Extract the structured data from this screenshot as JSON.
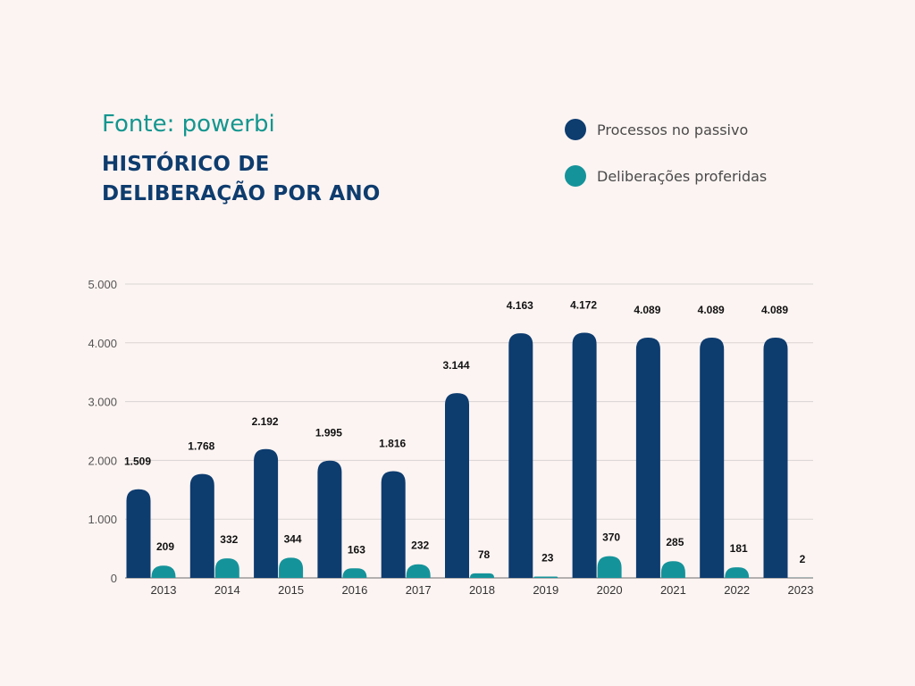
{
  "header": {
    "source": "Fonte: powerbi",
    "title_line1": "HISTÓRICO DE",
    "title_line2": "DELIBERAÇÃO POR ANO"
  },
  "legend": [
    {
      "label": "Processos no passivo",
      "color": "#0d3c6f"
    },
    {
      "label": "Deliberações proferidas",
      "color": "#15939a"
    }
  ],
  "chart_data": {
    "type": "bar",
    "categories": [
      "2013",
      "2014",
      "2015",
      "2016",
      "2017",
      "2018",
      "2019",
      "2020",
      "2021",
      "2022",
      "2023"
    ],
    "series": [
      {
        "name": "Processos no passivo",
        "color": "#0d3c6f",
        "values": [
          1509,
          1768,
          2192,
          1995,
          1816,
          3144,
          4163,
          4172,
          4089,
          4089,
          4089
        ],
        "labels": [
          "1.509",
          "1.768",
          "2.192",
          "1.995",
          "1.816",
          "3.144",
          "4.163",
          "4.172",
          "4.089",
          "4.089",
          "4.089"
        ]
      },
      {
        "name": "Deliberações proferidas",
        "color": "#15939a",
        "values": [
          209,
          332,
          344,
          163,
          232,
          78,
          23,
          370,
          285,
          181,
          2
        ],
        "labels": [
          "209",
          "332",
          "344",
          "163",
          "232",
          "78",
          "23",
          "370",
          "285",
          "181",
          "2"
        ]
      }
    ],
    "yticks": [
      0,
      1000,
      2000,
      3000,
      4000,
      5000
    ],
    "ytick_labels": [
      "0",
      "1.000",
      "2.000",
      "3.000",
      "4.000",
      "5.000"
    ],
    "ylim": [
      0,
      5000
    ],
    "grid": true,
    "legend_position": "top-right"
  }
}
